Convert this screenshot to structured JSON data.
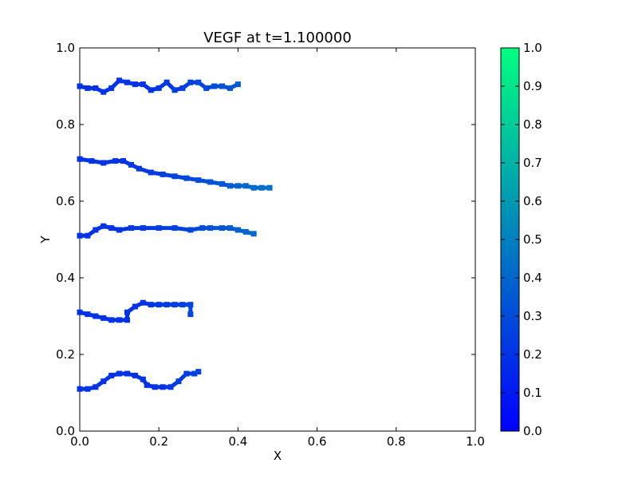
{
  "chart_data": {
    "type": "scatter",
    "title": "VEGF at t=1.100000",
    "xlabel": "X",
    "ylabel": "Y",
    "xlim": [
      0.0,
      1.0
    ],
    "ylim": [
      0.0,
      1.0
    ],
    "x_ticks": [
      "0.0",
      "0.2",
      "0.4",
      "0.6",
      "0.8",
      "1.0"
    ],
    "y_ticks": [
      "0.0",
      "0.2",
      "0.4",
      "0.6",
      "0.8",
      "1.0"
    ],
    "grid": false,
    "colorbar": {
      "range": [
        0.0,
        1.0
      ],
      "colormap": [
        "#0000ff",
        "#00ff80"
      ],
      "ticks": [
        "0.0",
        "0.1",
        "0.2",
        "0.3",
        "0.4",
        "0.5",
        "0.6",
        "0.7",
        "0.8",
        "0.9",
        "1.0"
      ]
    },
    "series": [
      {
        "points": [
          [
            0.0,
            0.9
          ],
          [
            0.02,
            0.895
          ],
          [
            0.04,
            0.895
          ],
          [
            0.06,
            0.885
          ],
          [
            0.08,
            0.895
          ],
          [
            0.1,
            0.915
          ],
          [
            0.12,
            0.91
          ],
          [
            0.14,
            0.905
          ],
          [
            0.16,
            0.905
          ],
          [
            0.18,
            0.89
          ],
          [
            0.2,
            0.895
          ],
          [
            0.22,
            0.91
          ],
          [
            0.24,
            0.89
          ],
          [
            0.26,
            0.895
          ],
          [
            0.28,
            0.91
          ],
          [
            0.3,
            0.91
          ],
          [
            0.32,
            0.895
          ],
          [
            0.34,
            0.9
          ],
          [
            0.36,
            0.9
          ],
          [
            0.38,
            0.895
          ],
          [
            0.4,
            0.905
          ]
        ],
        "values": [
          0.2,
          0.2,
          0.2,
          0.2,
          0.2,
          0.2,
          0.2,
          0.2,
          0.2,
          0.2,
          0.22,
          0.22,
          0.23,
          0.25,
          0.25,
          0.27,
          0.28,
          0.3,
          0.32,
          0.33,
          0.35
        ]
      },
      {
        "points": [
          [
            0.0,
            0.71
          ],
          [
            0.03,
            0.705
          ],
          [
            0.06,
            0.7
          ],
          [
            0.09,
            0.705
          ],
          [
            0.11,
            0.705
          ],
          [
            0.13,
            0.695
          ],
          [
            0.15,
            0.685
          ],
          [
            0.18,
            0.675
          ],
          [
            0.21,
            0.67
          ],
          [
            0.24,
            0.665
          ],
          [
            0.27,
            0.66
          ],
          [
            0.3,
            0.655
          ],
          [
            0.33,
            0.65
          ],
          [
            0.36,
            0.645
          ],
          [
            0.38,
            0.64
          ],
          [
            0.4,
            0.64
          ],
          [
            0.42,
            0.64
          ],
          [
            0.44,
            0.635
          ],
          [
            0.46,
            0.635
          ],
          [
            0.48,
            0.635
          ]
        ],
        "values": [
          0.2,
          0.2,
          0.2,
          0.2,
          0.2,
          0.22,
          0.22,
          0.23,
          0.25,
          0.26,
          0.28,
          0.3,
          0.32,
          0.34,
          0.36,
          0.38,
          0.4,
          0.42,
          0.44,
          0.45
        ]
      },
      {
        "points": [
          [
            0.0,
            0.51
          ],
          [
            0.02,
            0.51
          ],
          [
            0.04,
            0.525
          ],
          [
            0.06,
            0.535
          ],
          [
            0.08,
            0.53
          ],
          [
            0.1,
            0.525
          ],
          [
            0.13,
            0.53
          ],
          [
            0.16,
            0.53
          ],
          [
            0.2,
            0.53
          ],
          [
            0.24,
            0.53
          ],
          [
            0.28,
            0.525
          ],
          [
            0.31,
            0.53
          ],
          [
            0.33,
            0.53
          ],
          [
            0.36,
            0.53
          ],
          [
            0.38,
            0.53
          ],
          [
            0.4,
            0.525
          ],
          [
            0.42,
            0.52
          ],
          [
            0.44,
            0.515
          ]
        ],
        "values": [
          0.2,
          0.2,
          0.2,
          0.2,
          0.2,
          0.2,
          0.22,
          0.22,
          0.24,
          0.26,
          0.28,
          0.3,
          0.32,
          0.34,
          0.36,
          0.38,
          0.4,
          0.42
        ]
      },
      {
        "points": [
          [
            0.0,
            0.31
          ],
          [
            0.02,
            0.305
          ],
          [
            0.04,
            0.3
          ],
          [
            0.06,
            0.295
          ],
          [
            0.08,
            0.29
          ],
          [
            0.1,
            0.29
          ],
          [
            0.12,
            0.29
          ],
          [
            0.12,
            0.31
          ],
          [
            0.14,
            0.325
          ],
          [
            0.16,
            0.335
          ],
          [
            0.18,
            0.33
          ],
          [
            0.2,
            0.33
          ],
          [
            0.22,
            0.33
          ],
          [
            0.24,
            0.33
          ],
          [
            0.26,
            0.33
          ],
          [
            0.28,
            0.33
          ],
          [
            0.28,
            0.305
          ]
        ],
        "values": [
          0.2,
          0.2,
          0.2,
          0.2,
          0.2,
          0.2,
          0.2,
          0.2,
          0.2,
          0.2,
          0.22,
          0.22,
          0.24,
          0.25,
          0.26,
          0.28,
          0.28
        ]
      },
      {
        "points": [
          [
            0.0,
            0.11
          ],
          [
            0.02,
            0.11
          ],
          [
            0.04,
            0.115
          ],
          [
            0.06,
            0.13
          ],
          [
            0.08,
            0.145
          ],
          [
            0.1,
            0.15
          ],
          [
            0.12,
            0.15
          ],
          [
            0.14,
            0.145
          ],
          [
            0.16,
            0.135
          ],
          [
            0.17,
            0.12
          ],
          [
            0.19,
            0.115
          ],
          [
            0.21,
            0.115
          ],
          [
            0.23,
            0.115
          ],
          [
            0.25,
            0.13
          ],
          [
            0.27,
            0.15
          ],
          [
            0.29,
            0.15
          ],
          [
            0.3,
            0.155
          ]
        ],
        "values": [
          0.2,
          0.2,
          0.2,
          0.2,
          0.2,
          0.2,
          0.2,
          0.2,
          0.2,
          0.2,
          0.2,
          0.2,
          0.22,
          0.23,
          0.24,
          0.25,
          0.26
        ]
      }
    ]
  }
}
